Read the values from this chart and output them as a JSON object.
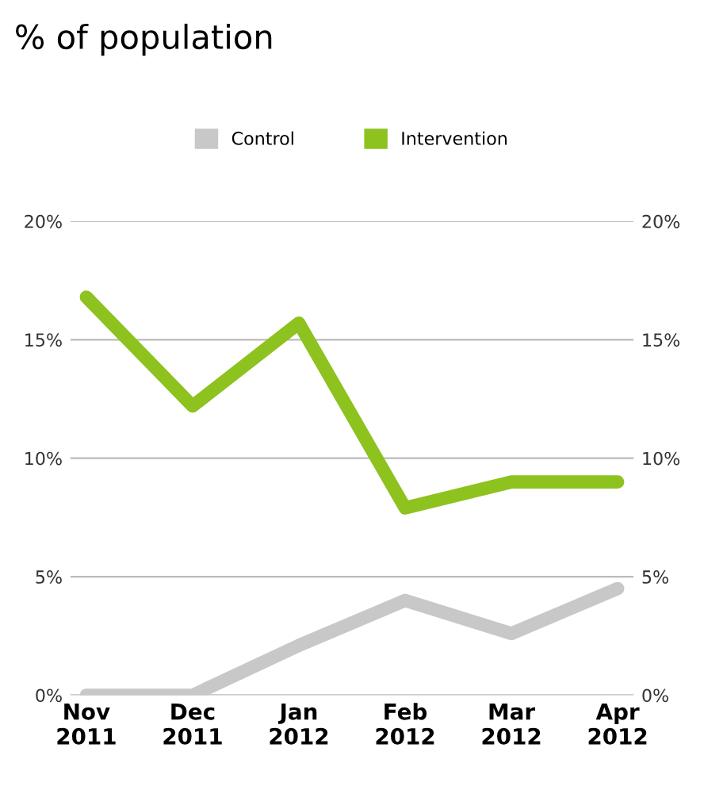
{
  "chart_data": {
    "type": "line",
    "title": "% of population",
    "categories": [
      "Nov\n2011",
      "Dec\n2011",
      "Jan\n2012",
      "Feb\n2012",
      "Mar\n2012",
      "Apr\n2012"
    ],
    "series": [
      {
        "name": "Control",
        "color": "#c8c8c8",
        "values": [
          0,
          0,
          2.1,
          4.0,
          2.6,
          4.5
        ]
      },
      {
        "name": "Intervention",
        "color": "#8dc21f",
        "values": [
          16.8,
          12.2,
          15.7,
          7.9,
          9.0,
          9.0
        ]
      }
    ],
    "ylim": [
      0,
      20
    ],
    "yticks": [
      {
        "value": 0,
        "label": "0%"
      },
      {
        "value": 5,
        "label": "5%"
      },
      {
        "value": 10,
        "label": "10%"
      },
      {
        "value": 15,
        "label": "15%"
      },
      {
        "value": 20,
        "label": "20%"
      }
    ],
    "y2lim": [
      0,
      20
    ],
    "y2ticks": [
      {
        "value": 0,
        "label": "0%"
      },
      {
        "value": 5,
        "label": "5%"
      },
      {
        "value": 10,
        "label": "10%"
      },
      {
        "value": 15,
        "label": "15%"
      },
      {
        "value": 20,
        "label": "20%"
      }
    ],
    "grid": "y",
    "legend": "top",
    "marker": "none",
    "line_style": "solid"
  }
}
